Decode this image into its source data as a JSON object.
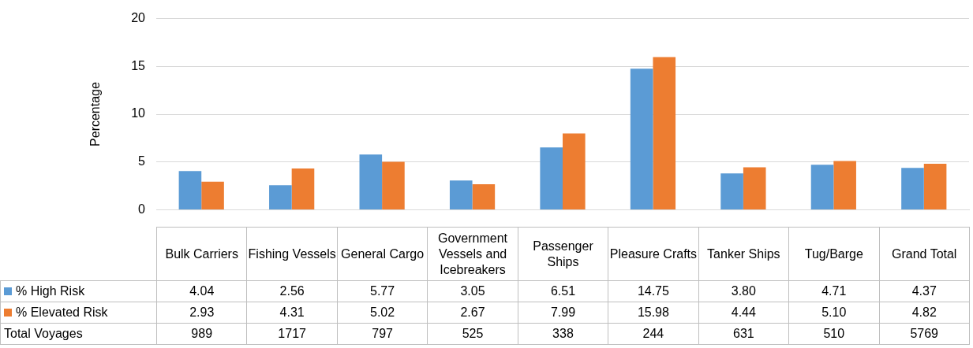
{
  "chart_data": {
    "type": "bar",
    "ylabel": "Percentage",
    "categories": [
      "Bulk Carriers",
      "Fishing Vessels",
      "General Cargo",
      "Government Vessels and Icebreakers",
      "Passenger Ships",
      "Pleasure Crafts",
      "Tanker Ships",
      "Tug/Barge",
      "Grand Total"
    ],
    "series": [
      {
        "name": "% High Risk",
        "color": "#5b9bd5",
        "values": [
          4.04,
          2.56,
          5.77,
          3.05,
          6.51,
          14.75,
          3.8,
          4.71,
          4.37
        ],
        "value_labels": [
          "4.04",
          "2.56",
          "5.77",
          "3.05",
          "6.51",
          "14.75",
          "3.80",
          "4.71",
          "4.37"
        ]
      },
      {
        "name": "% Elevated Risk",
        "color": "#ed7d31",
        "values": [
          2.93,
          4.31,
          5.02,
          2.67,
          7.99,
          15.98,
          4.44,
          5.1,
          4.82
        ],
        "value_labels": [
          "2.93",
          "4.31",
          "5.02",
          "2.67",
          "7.99",
          "15.98",
          "4.44",
          "5.10",
          "4.82"
        ]
      }
    ],
    "ylim": [
      0,
      20
    ],
    "yticks": [
      0,
      5,
      10,
      15,
      20
    ],
    "grid": "y",
    "legend": "bottom",
    "annotations": [
      "Total Voyages",
      "989",
      "1717",
      "797",
      "525",
      "338",
      "244",
      "631",
      "510",
      "5769"
    ]
  }
}
